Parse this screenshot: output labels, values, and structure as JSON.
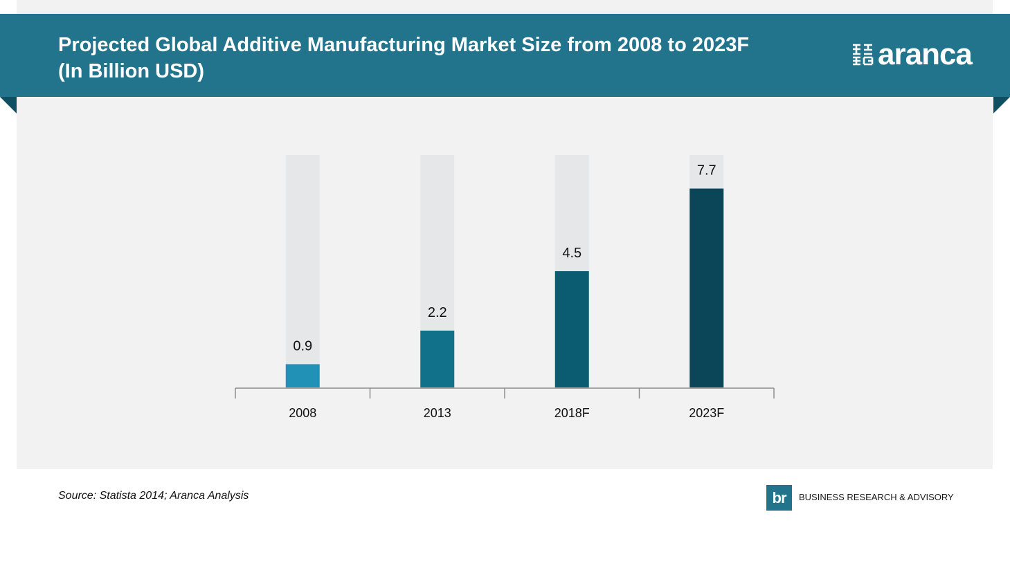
{
  "header": {
    "title_line1": "Projected Global Additive Manufacturing Market Size from 2008 to 2023F",
    "title_line2": "(In Billion USD)",
    "brand": "aranca"
  },
  "footer": {
    "source": "Source: Statista 2014; Aranca Analysis",
    "partner_badge": "br",
    "partner_text": "BUSINESS RESEARCH & ADVISORY"
  },
  "colors": {
    "banner": "#22748d",
    "track": "#e6e7e9",
    "bars": [
      "#2191b5",
      "#12718a",
      "#0b5c70",
      "#0a4558"
    ]
  },
  "chart_data": {
    "type": "bar",
    "categories": [
      "2008",
      "2013",
      "2018F",
      "2023F"
    ],
    "values": [
      0.9,
      2.2,
      4.5,
      7.7
    ],
    "data_labels": [
      "0.9",
      "2.2",
      "4.5",
      "7.7"
    ],
    "title": "Projected Global Additive Manufacturing Market Size from 2008 to 2023F (In Billion USD)",
    "xlabel": "",
    "ylabel": "",
    "ylim": [
      0,
      9.0
    ],
    "grid": false,
    "legend": "none"
  }
}
